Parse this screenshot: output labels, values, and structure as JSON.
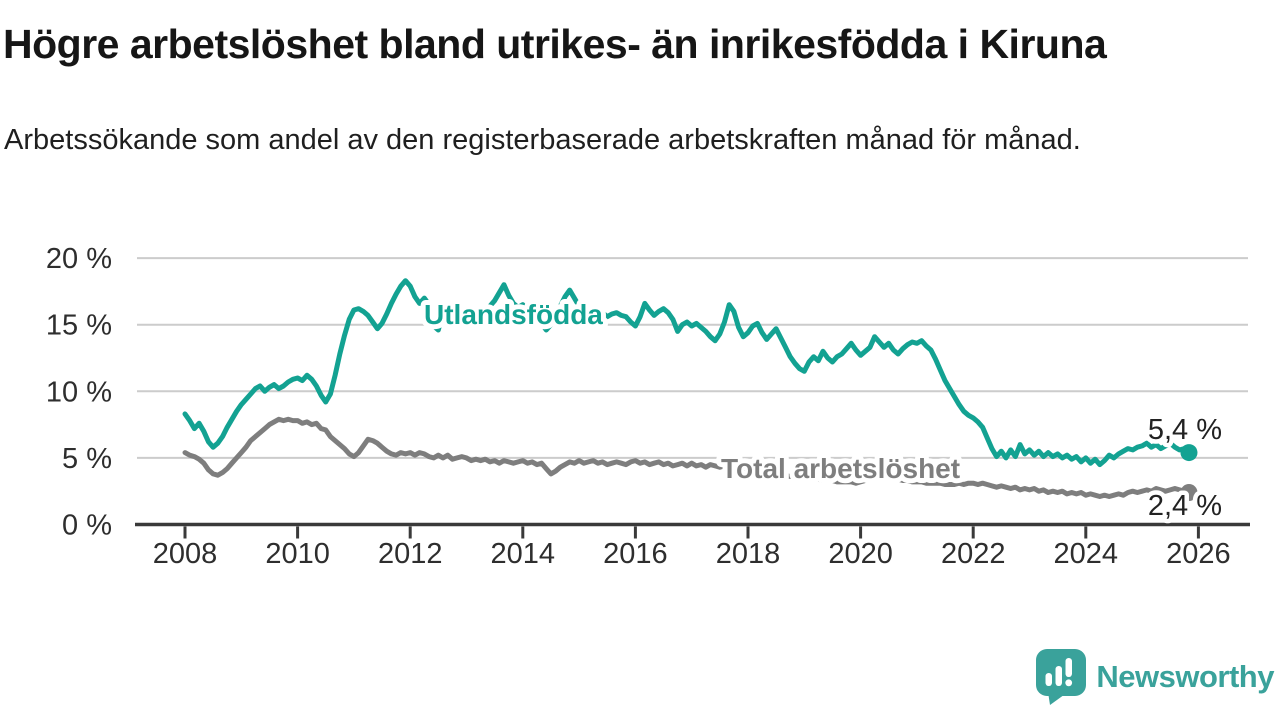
{
  "header": {
    "title": "Högre arbetslöshet bland utrikes- än inrikesfödda i Kiruna",
    "subtitle": "Arbetssökande som andel av den registerbaserade arbetskraften månad för månad."
  },
  "chart_data": {
    "type": "line",
    "title": "Högre arbetslöshet bland utrikes- än inrikesfödda i Kiruna",
    "x_start": 2008.0,
    "x_step": 0.08333,
    "xlim": [
      2007.1,
      2026.9
    ],
    "ylim": [
      0,
      21
    ],
    "grid": "horizontal",
    "legend_position": "inline-line-labels",
    "yticks": [
      {
        "value": 0,
        "label": "0 %"
      },
      {
        "value": 5,
        "label": "5 %"
      },
      {
        "value": 10,
        "label": "10 %"
      },
      {
        "value": 15,
        "label": "15 %"
      },
      {
        "value": 20,
        "label": "20 %"
      }
    ],
    "xticks": [
      {
        "value": 2008,
        "label": "2008"
      },
      {
        "value": 2010,
        "label": "2010"
      },
      {
        "value": 2012,
        "label": "2012"
      },
      {
        "value": 2014,
        "label": "2014"
      },
      {
        "value": 2016,
        "label": "2016"
      },
      {
        "value": 2018,
        "label": "2018"
      },
      {
        "value": 2020,
        "label": "2020"
      },
      {
        "value": 2022,
        "label": "2022"
      },
      {
        "value": 2024,
        "label": "2024"
      },
      {
        "value": 2026,
        "label": "2026"
      }
    ],
    "series": [
      {
        "name": "Utlandsfödda",
        "color": "#13a292",
        "end_label": "5,4 %",
        "end_value": 5.4,
        "values": [
          8.3,
          7.8,
          7.2,
          7.6,
          7.0,
          6.2,
          5.8,
          6.1,
          6.6,
          7.3,
          7.9,
          8.5,
          9.0,
          9.4,
          9.8,
          10.2,
          10.4,
          10.0,
          10.3,
          10.5,
          10.2,
          10.4,
          10.7,
          10.9,
          11.0,
          10.8,
          11.2,
          10.9,
          10.4,
          9.7,
          9.2,
          9.8,
          11.2,
          12.8,
          14.2,
          15.4,
          16.1,
          16.2,
          16.0,
          15.7,
          15.2,
          14.7,
          15.1,
          15.8,
          16.6,
          17.3,
          17.9,
          18.3,
          17.9,
          17.1,
          16.6,
          17.0,
          16.5,
          14.9,
          14.6,
          15.9,
          16.4,
          16.1,
          16.3,
          16.0,
          16.2,
          15.9,
          16.1,
          16.3,
          16.0,
          16.4,
          16.8,
          17.4,
          18.0,
          17.2,
          16.6,
          16.3,
          16.5,
          16.1,
          16.3,
          15.8,
          15.1,
          14.6,
          15.0,
          15.7,
          16.4,
          17.1,
          17.6,
          17.0,
          16.4,
          16.1,
          15.8,
          16.0,
          15.7,
          15.9,
          15.6,
          15.8,
          15.9,
          15.7,
          15.6,
          15.2,
          14.9,
          15.6,
          16.6,
          16.1,
          15.7,
          16.0,
          16.2,
          15.9,
          15.4,
          14.5,
          15.0,
          15.2,
          14.9,
          15.1,
          14.8,
          14.5,
          14.1,
          13.8,
          14.3,
          15.2,
          16.5,
          16.0,
          14.8,
          14.1,
          14.4,
          14.9,
          15.1,
          14.4,
          13.9,
          14.3,
          14.7,
          14.0,
          13.3,
          12.6,
          12.1,
          11.7,
          11.5,
          12.2,
          12.6,
          12.3,
          13.0,
          12.5,
          12.2,
          12.6,
          12.8,
          13.2,
          13.6,
          13.1,
          12.7,
          13.0,
          13.3,
          14.1,
          13.7,
          13.3,
          13.6,
          13.1,
          12.8,
          13.2,
          13.5,
          13.7,
          13.6,
          13.8,
          13.4,
          13.1,
          12.4,
          11.6,
          10.8,
          10.2,
          9.6,
          9.0,
          8.5,
          8.2,
          8.0,
          7.7,
          7.3,
          6.5,
          5.7,
          5.1,
          5.5,
          5.0,
          5.6,
          5.1,
          6.0,
          5.3,
          5.6,
          5.2,
          5.5,
          5.1,
          5.4,
          5.1,
          5.3,
          5.0,
          5.2,
          4.9,
          5.1,
          4.7,
          5.0,
          4.6,
          4.9,
          4.5,
          4.8,
          5.2,
          5.0,
          5.3,
          5.5,
          5.7,
          5.6,
          5.8,
          5.9,
          6.1,
          5.8,
          6.0,
          5.7,
          5.9,
          6.1,
          5.8,
          5.6,
          5.7,
          5.4
        ]
      },
      {
        "name": "Total arbetslöshet",
        "color": "#7e7e7e",
        "end_label": "2,4 %",
        "end_value": 2.4,
        "values": [
          5.4,
          5.2,
          5.1,
          4.9,
          4.6,
          4.1,
          3.8,
          3.7,
          3.9,
          4.2,
          4.6,
          5.0,
          5.4,
          5.8,
          6.3,
          6.6,
          6.9,
          7.2,
          7.5,
          7.7,
          7.9,
          7.8,
          7.9,
          7.8,
          7.8,
          7.6,
          7.7,
          7.5,
          7.6,
          7.2,
          7.1,
          6.6,
          6.3,
          6.0,
          5.7,
          5.3,
          5.1,
          5.4,
          5.9,
          6.4,
          6.3,
          6.1,
          5.8,
          5.5,
          5.3,
          5.2,
          5.4,
          5.3,
          5.4,
          5.2,
          5.4,
          5.3,
          5.1,
          5.0,
          5.2,
          5.0,
          5.2,
          4.9,
          5.0,
          5.1,
          5.0,
          4.8,
          4.9,
          4.8,
          4.9,
          4.7,
          4.8,
          4.6,
          4.8,
          4.7,
          4.6,
          4.7,
          4.8,
          4.6,
          4.7,
          4.5,
          4.6,
          4.2,
          3.8,
          4.0,
          4.3,
          4.5,
          4.7,
          4.6,
          4.8,
          4.6,
          4.7,
          4.8,
          4.6,
          4.7,
          4.5,
          4.6,
          4.7,
          4.6,
          4.5,
          4.7,
          4.8,
          4.6,
          4.7,
          4.5,
          4.6,
          4.7,
          4.5,
          4.6,
          4.4,
          4.5,
          4.6,
          4.4,
          4.6,
          4.4,
          4.5,
          4.3,
          4.5,
          4.4,
          4.3,
          4.4,
          4.3,
          4.2,
          4.2,
          4.1,
          4.1,
          4.0,
          4.0,
          3.9,
          3.9,
          3.8,
          3.8,
          3.7,
          3.7,
          3.6,
          3.6,
          3.5,
          3.5,
          3.5,
          3.4,
          3.4,
          3.3,
          3.3,
          3.3,
          3.2,
          3.2,
          3.2,
          3.2,
          3.1,
          3.2,
          3.3,
          3.4,
          3.6,
          3.6,
          3.5,
          3.5,
          3.4,
          3.4,
          3.3,
          3.3,
          3.2,
          3.2,
          3.2,
          3.1,
          3.1,
          3.1,
          3.1,
          3.0,
          3.0,
          3.0,
          3.1,
          3.0,
          3.1,
          3.1,
          3.0,
          3.1,
          3.0,
          2.9,
          2.8,
          2.9,
          2.8,
          2.7,
          2.8,
          2.6,
          2.7,
          2.6,
          2.7,
          2.5,
          2.6,
          2.4,
          2.5,
          2.4,
          2.5,
          2.3,
          2.4,
          2.3,
          2.4,
          2.2,
          2.3,
          2.2,
          2.1,
          2.2,
          2.1,
          2.2,
          2.3,
          2.2,
          2.4,
          2.5,
          2.4,
          2.5,
          2.6,
          2.5,
          2.7,
          2.6,
          2.5,
          2.6,
          2.7,
          2.6,
          2.5,
          2.4
        ]
      }
    ],
    "colors": {
      "grid": "#cccccc",
      "axis": "#3a3a3a",
      "accent_teal": "#13a292",
      "accent_gray": "#7e7e7e"
    }
  },
  "branding": {
    "logo_text": "Newsworthy",
    "logo_icon": "speech-bubble-bar-chart-icon",
    "logo_color": "#3aa29b"
  }
}
